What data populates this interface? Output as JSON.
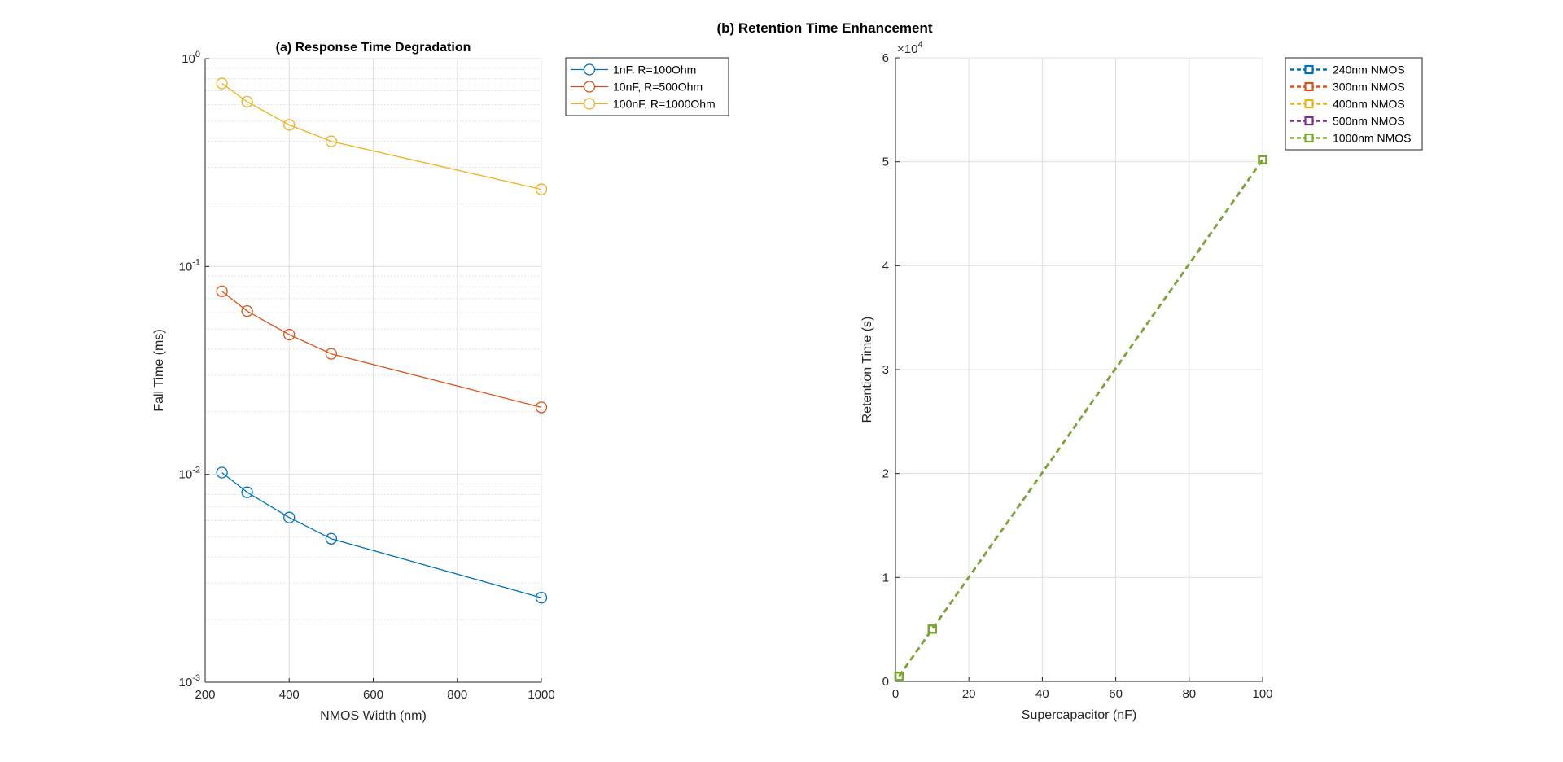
{
  "figure": {
    "title": "(b) Retention Time Enhancement"
  },
  "chart_data": [
    {
      "type": "line",
      "title": "(a) Response Time Degradation",
      "xlabel": "NMOS Width (nm)",
      "ylabel": "Fall Time (ms)",
      "xlim": [
        200,
        1000
      ],
      "ylim": [
        0.001,
        1
      ],
      "yscale": "log",
      "grid": true,
      "legend_location": "northeast",
      "x_ticks": [
        "200",
        "400",
        "600",
        "800",
        "1000"
      ],
      "y_ticks": [
        {
          "base": "10",
          "exp": "-3"
        },
        {
          "base": "10",
          "exp": "-2"
        },
        {
          "base": "10",
          "exp": "-1"
        },
        {
          "base": "10",
          "exp": "0"
        }
      ],
      "x": [
        240,
        300,
        400,
        500,
        1000
      ],
      "series": [
        {
          "name": "1nF, R=100Ohm",
          "color": "#0072BD",
          "marker": "circle",
          "line": "solid",
          "values": [
            0.0102,
            0.0082,
            0.0062,
            0.0049,
            0.00255
          ]
        },
        {
          "name": "10nF, R=500Ohm",
          "color": "#D95319",
          "marker": "circle",
          "line": "solid",
          "values": [
            0.076,
            0.061,
            0.047,
            0.038,
            0.021
          ]
        },
        {
          "name": "100nF, R=1000Ohm",
          "color": "#EDB120",
          "marker": "circle",
          "line": "solid",
          "values": [
            0.76,
            0.62,
            0.48,
            0.4,
            0.235
          ]
        }
      ]
    },
    {
      "type": "line",
      "title": "",
      "xlabel": "Supercapacitor (nF)",
      "ylabel": "Retention Time (s)",
      "xlim": [
        0,
        100
      ],
      "ylim": [
        0,
        60000
      ],
      "y_exponent": {
        "base": "×10",
        "exp": "4"
      },
      "grid": true,
      "legend_location": "northeast",
      "x_ticks": [
        "0",
        "20",
        "40",
        "60",
        "80",
        "100"
      ],
      "y_ticks": [
        "0",
        "1",
        "2",
        "3",
        "4",
        "5",
        "6"
      ],
      "x": [
        1,
        10,
        100
      ],
      "series": [
        {
          "name": "240nm NMOS",
          "color": "#0072BD",
          "marker": "square",
          "line": "dashed",
          "values": [
            502,
            5020,
            50200
          ]
        },
        {
          "name": "300nm NMOS",
          "color": "#D95319",
          "marker": "square",
          "line": "dashed",
          "values": [
            502,
            5020,
            50200
          ]
        },
        {
          "name": "400nm NMOS",
          "color": "#EDB120",
          "marker": "square",
          "line": "dashed",
          "values": [
            502,
            5020,
            50200
          ]
        },
        {
          "name": "500nm NMOS",
          "color": "#7E2F8E",
          "marker": "square",
          "line": "dashed",
          "values": [
            502,
            5020,
            50200
          ]
        },
        {
          "name": "1000nm NMOS",
          "color": "#77AC30",
          "marker": "square",
          "line": "dashed",
          "values": [
            502,
            5020,
            50200
          ]
        }
      ]
    }
  ]
}
